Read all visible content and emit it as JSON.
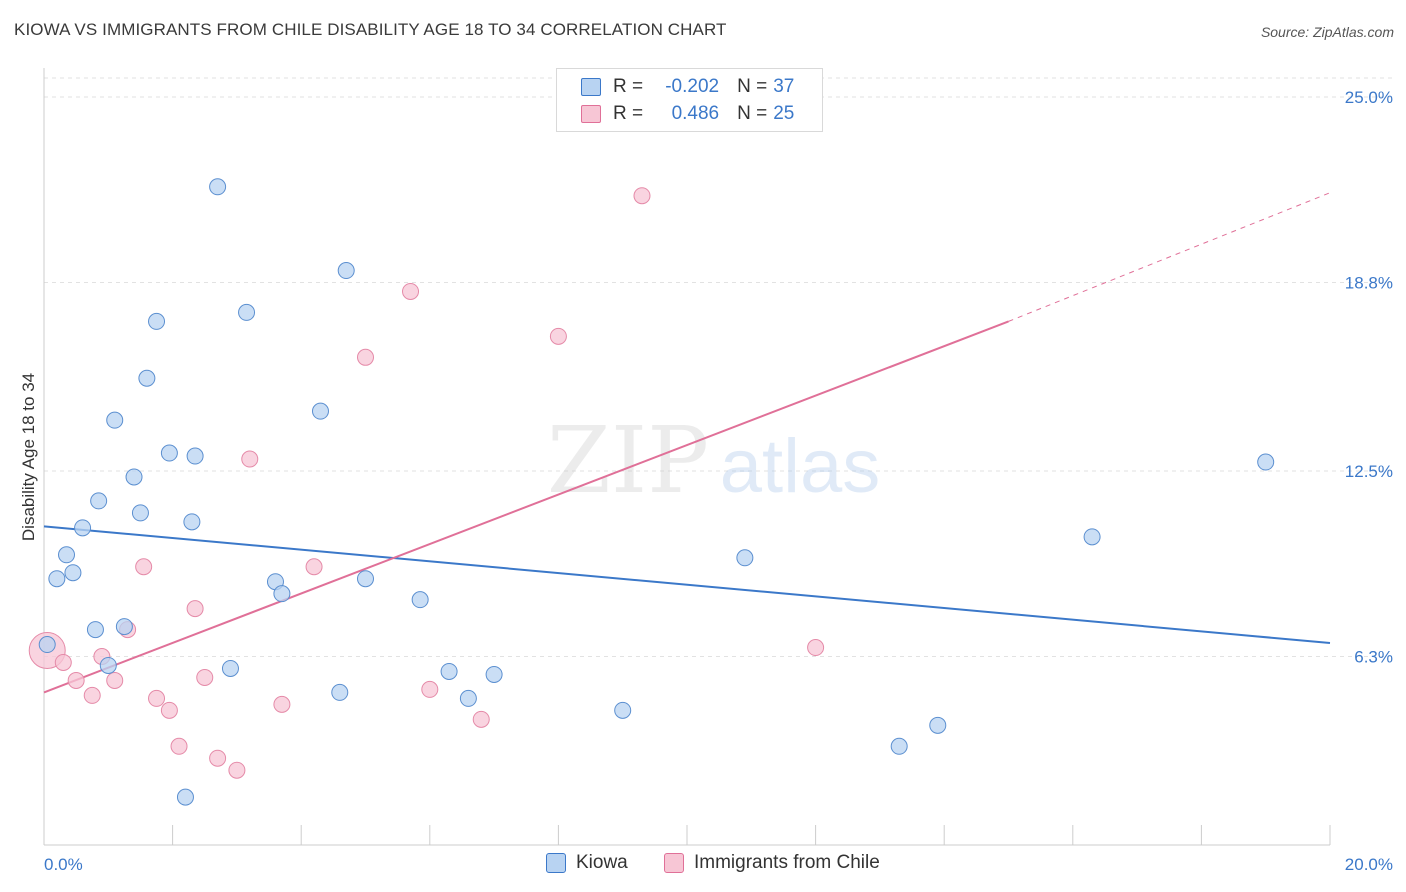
{
  "title": "KIOWA VS IMMIGRANTS FROM CHILE DISABILITY AGE 18 TO 34 CORRELATION CHART",
  "source": "Source: ZipAtlas.com",
  "watermark": {
    "zip": "ZIP",
    "atlas": "atlas"
  },
  "colors": {
    "blue": "#3b78c9",
    "blue_fill": "#b8d3f2",
    "pink": "#e07098",
    "pink_fill": "#f7c6d5",
    "grid": "#d9d9d9"
  },
  "legend": {
    "rows": [
      {
        "r_label": "R =",
        "r_value": "-0.202",
        "n_label": "N =",
        "n_value": "37"
      },
      {
        "r_label": "R =",
        "r_value": "0.486",
        "n_label": "N =",
        "n_value": "25"
      }
    ]
  },
  "bottom_legend": {
    "series1": "Kiowa",
    "series2": "Immigrants from Chile"
  },
  "chart_data": {
    "type": "scatter",
    "title": "KIOWA VS IMMIGRANTS FROM CHILE DISABILITY AGE 18 TO 34 CORRELATION CHART",
    "xlabel": "",
    "ylabel": "Disability Age 18 to 34",
    "xlim": [
      0,
      20
    ],
    "ylim": [
      0,
      25.0
    ],
    "x_tick_labels": [
      "0.0%",
      "20.0%"
    ],
    "y_ticks": [
      6.3,
      12.5,
      18.8,
      25.0
    ],
    "y_tick_labels": [
      "6.3%",
      "12.5%",
      "18.8%",
      "25.0%"
    ],
    "grid": "horizontal dashed",
    "legend_placement": "top-center",
    "series": [
      {
        "name": "Kiowa",
        "color": "#3b78c9",
        "points": [
          [
            0.05,
            6.7
          ],
          [
            0.2,
            8.9
          ],
          [
            0.35,
            9.7
          ],
          [
            0.45,
            9.1
          ],
          [
            0.6,
            10.6
          ],
          [
            0.8,
            7.2
          ],
          [
            0.85,
            11.5
          ],
          [
            1.0,
            6.0
          ],
          [
            1.1,
            14.2
          ],
          [
            1.25,
            7.3
          ],
          [
            1.4,
            12.3
          ],
          [
            1.5,
            11.1
          ],
          [
            1.6,
            15.6
          ],
          [
            1.75,
            17.5
          ],
          [
            1.95,
            13.1
          ],
          [
            2.2,
            1.6
          ],
          [
            2.3,
            10.8
          ],
          [
            2.35,
            13.0
          ],
          [
            2.7,
            22.0
          ],
          [
            2.9,
            5.9
          ],
          [
            3.15,
            17.8
          ],
          [
            3.6,
            8.8
          ],
          [
            3.7,
            8.4
          ],
          [
            4.3,
            14.5
          ],
          [
            4.6,
            5.1
          ],
          [
            4.7,
            19.2
          ],
          [
            5.0,
            8.9
          ],
          [
            5.85,
            8.2
          ],
          [
            6.3,
            5.8
          ],
          [
            6.6,
            4.9
          ],
          [
            7.0,
            5.7
          ],
          [
            9.0,
            4.5
          ],
          [
            10.9,
            9.6
          ],
          [
            13.3,
            3.3
          ],
          [
            13.9,
            4.0
          ],
          [
            16.3,
            10.3
          ],
          [
            19.0,
            12.8
          ]
        ],
        "trend": [
          [
            0,
            10.65
          ],
          [
            20,
            6.75
          ]
        ]
      },
      {
        "name": "Immigrants from Chile",
        "color": "#e07098",
        "points": [
          [
            0.05,
            6.5
          ],
          [
            0.3,
            6.1
          ],
          [
            0.5,
            5.5
          ],
          [
            0.75,
            5.0
          ],
          [
            0.9,
            6.3
          ],
          [
            1.1,
            5.5
          ],
          [
            1.3,
            7.2
          ],
          [
            1.55,
            9.3
          ],
          [
            1.75,
            4.9
          ],
          [
            1.95,
            4.5
          ],
          [
            2.1,
            3.3
          ],
          [
            2.35,
            7.9
          ],
          [
            2.5,
            5.6
          ],
          [
            2.7,
            2.9
          ],
          [
            3.0,
            2.5
          ],
          [
            3.2,
            12.9
          ],
          [
            3.7,
            4.7
          ],
          [
            4.2,
            9.3
          ],
          [
            5.0,
            16.3
          ],
          [
            5.7,
            18.5
          ],
          [
            6.0,
            5.2
          ],
          [
            6.8,
            4.2
          ],
          [
            8.0,
            17.0
          ],
          [
            9.3,
            21.7
          ],
          [
            12.0,
            6.6
          ]
        ],
        "trend": [
          [
            0,
            5.1
          ],
          [
            15.0,
            17.5
          ]
        ],
        "trend_extension": [
          [
            15.0,
            17.5
          ],
          [
            20.0,
            21.8
          ]
        ]
      }
    ]
  }
}
